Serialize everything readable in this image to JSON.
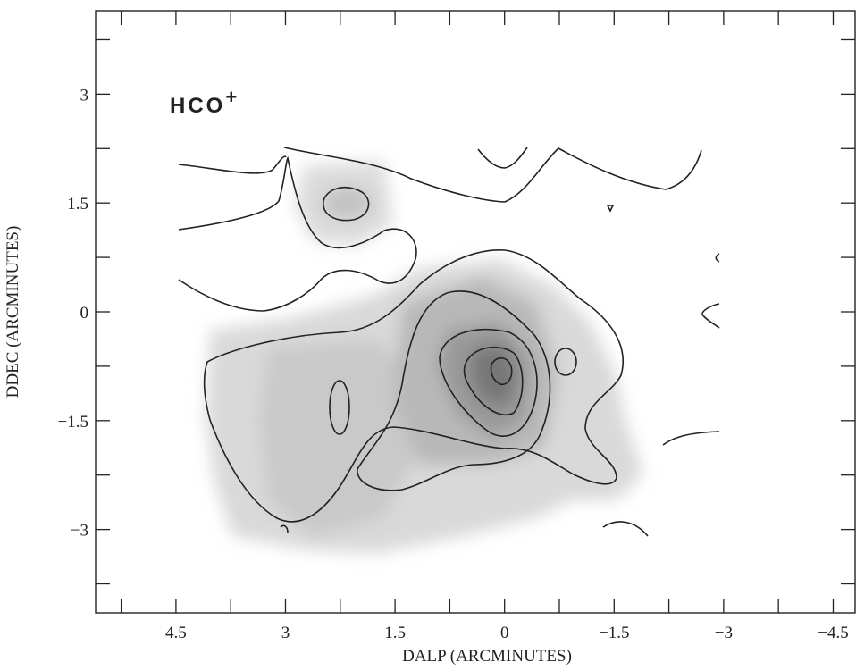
{
  "chart_data": {
    "type": "contour",
    "annotation": {
      "text": "HCO",
      "sup": "+"
    },
    "x_label": "DALP (ARCMINUTES)",
    "y_label": "DDEC (ARCMINUTES)",
    "xlim": [
      5.6,
      -4.8
    ],
    "ylim": [
      -4.15,
      4.15
    ],
    "xticks": [
      4.5,
      3,
      1.5,
      0,
      {
        "value": -1.5,
        "label": "−1.5"
      },
      {
        "value": -3,
        "label": "−3"
      },
      {
        "value": -4.5,
        "label": "−4.5"
      }
    ],
    "yticks": [
      {
        "value": -3,
        "label": "−3"
      },
      {
        "value": -1.5,
        "label": "−1.5"
      },
      0,
      1.5,
      3
    ],
    "xminorticks": [
      5.25,
      3.75,
      2.25,
      0.75,
      -0.75,
      -2.25,
      -3.75
    ],
    "yminorticks": [
      -3.75,
      -2.25,
      -0.75,
      0.75,
      2.25,
      3.75
    ]
  }
}
